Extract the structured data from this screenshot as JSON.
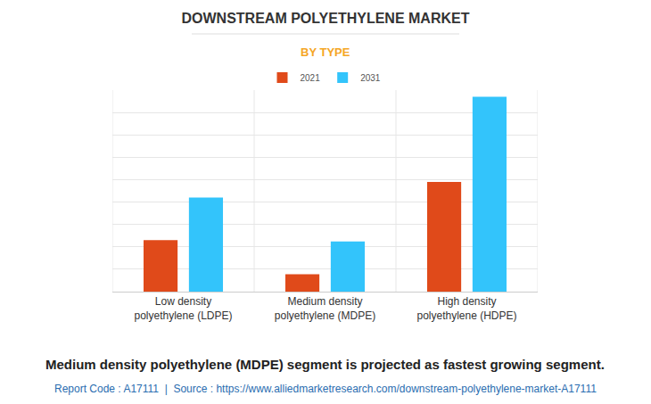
{
  "chart_data": {
    "type": "bar",
    "title": "DOWNSTREAM POLYETHYLENE MARKET",
    "subtitle": "BY TYPE",
    "categories": [
      "Low density\npolyethylene (LDPE)",
      "Medium density\npolyethylene (MDPE)",
      "High density\npolyethylene (HDPE)"
    ],
    "series": [
      {
        "name": "2021",
        "color": "#e04a1a",
        "values": [
          2.3,
          0.78,
          4.9
        ]
      },
      {
        "name": "2031",
        "color": "#33c4fb",
        "values": [
          4.2,
          2.24,
          8.7
        ]
      }
    ],
    "ylim": [
      0,
      9
    ],
    "yticks": [
      0,
      1,
      2,
      3,
      4,
      5,
      6,
      7,
      8,
      9
    ],
    "grid": true,
    "legend": "top",
    "tick_labels": "x",
    "annotations": [
      "Medium density polyethylene (MDPE) segment is projected as fastest growing segment.",
      "Report Code : A17111  |  Source : https://www.alliedmarketresearch.com/downstream-polyethylene-market-A17111"
    ]
  }
}
